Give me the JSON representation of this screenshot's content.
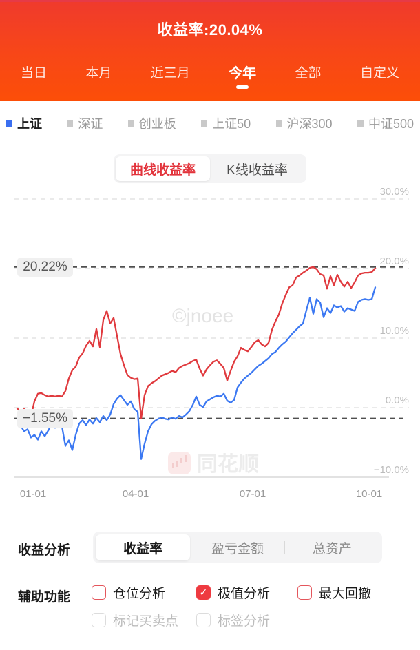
{
  "header": {
    "title": "收益率:20.04%",
    "tabs": [
      {
        "label": "当日",
        "selected": false
      },
      {
        "label": "本月",
        "selected": false
      },
      {
        "label": "近三月",
        "selected": false
      },
      {
        "label": "今年",
        "selected": true
      },
      {
        "label": "全部",
        "selected": false
      },
      {
        "label": "自定义",
        "selected": false
      }
    ]
  },
  "legend": {
    "items": [
      {
        "label": "上证",
        "active": true,
        "color": "#3a6ff0"
      },
      {
        "label": "深证",
        "active": false,
        "color": "#c9c9c9"
      },
      {
        "label": "创业板",
        "active": false,
        "color": "#c9c9c9"
      },
      {
        "label": "上证50",
        "active": false,
        "color": "#c9c9c9"
      },
      {
        "label": "沪深300",
        "active": false,
        "color": "#c9c9c9"
      },
      {
        "label": "中证500",
        "active": false,
        "color": "#c9c9c9"
      }
    ]
  },
  "view_toggle": {
    "options": [
      {
        "label": "曲线收益率",
        "selected": true
      },
      {
        "label": "K线收益率",
        "selected": false
      }
    ]
  },
  "chart_data": {
    "type": "line",
    "x_ticks": [
      "01-01",
      "04-01",
      "07-01",
      "10-01"
    ],
    "y_ticks": [
      {
        "label": "30.0%",
        "value": 30
      },
      {
        "label": "20.0%",
        "value": 20
      },
      {
        "label": "10.0%",
        "value": 10
      },
      {
        "label": "0.0%",
        "value": 0
      },
      {
        "label": "−10.0%",
        "value": -10
      }
    ],
    "ylim": [
      -13,
      32
    ],
    "grid": "dashed horizontal",
    "legend_position": "top-left (above chart)",
    "annotations": {
      "max": {
        "label": "20.22%",
        "value": 20.22
      },
      "min": {
        "label": "−1.55%",
        "value": -1.55
      }
    },
    "watermarks": [
      "©jnoee",
      "同花顺"
    ],
    "series": [
      {
        "name": "收益率",
        "color": "#e03a3e",
        "values": [
          -0.1,
          -0.6,
          -0.2,
          -1.0,
          -1.3,
          0.9,
          2.0,
          2.1,
          1.8,
          1.6,
          1.7,
          1.6,
          1.7,
          1.6,
          2.4,
          4.2,
          5.4,
          5.9,
          7.2,
          7.8,
          8.9,
          9.6,
          8.8,
          11.3,
          8.7,
          12.6,
          13.9,
          12.1,
          12.9,
          10.3,
          7.7,
          6.1,
          4.7,
          4.3,
          4.1,
          4.2,
          -1.55,
          1.8,
          3.1,
          3.5,
          3.8,
          4.2,
          4.6,
          4.8,
          5.0,
          5.3,
          5.1,
          5.7,
          6.0,
          6.2,
          6.4,
          6.7,
          6.9,
          5.6,
          4.6,
          5.5,
          6.1,
          6.6,
          6.8,
          6.3,
          5.7,
          3.9,
          5.3,
          6.6,
          7.4,
          8.6,
          8.3,
          8.1,
          8.7,
          9.4,
          9.7,
          9.1,
          8.8,
          9.3,
          11.2,
          12.4,
          13.4,
          15.0,
          16.2,
          17.3,
          17.6,
          18.7,
          19.0,
          19.4,
          19.7,
          20.1,
          20.22,
          19.9,
          19.2,
          19.0,
          17.1,
          18.9,
          17.6,
          19.1,
          18.1,
          17.4,
          18.1,
          17.2,
          18.0,
          19.0,
          19.3,
          19.4,
          19.4,
          19.5,
          20.04
        ]
      },
      {
        "name": "上证",
        "color": "#3b78f2",
        "values": [
          -1.6,
          -2.6,
          -3.4,
          -3.1,
          -4.3,
          -3.9,
          -4.6,
          -3.4,
          -4.1,
          -3.3,
          -2.4,
          -2.9,
          -2.1,
          -2.7,
          -5.5,
          -4.7,
          -6.1,
          -3.9,
          -2.3,
          -1.8,
          -2.5,
          -1.7,
          -2.3,
          -1.5,
          -2.1,
          -1.2,
          -1.8,
          -1.0,
          0.5,
          1.3,
          1.8,
          1.1,
          0.4,
          0.9,
          -0.2,
          -0.6,
          -7.4,
          -5.2,
          -3.4,
          -2.4,
          -1.9,
          -1.6,
          -1.4,
          -1.6,
          -1.7,
          -1.4,
          -1.6,
          -1.2,
          -1.4,
          -1.0,
          -0.5,
          0.4,
          1.6,
          0.4,
          0.1,
          0.9,
          1.2,
          1.5,
          1.7,
          1.6,
          2.0,
          1.0,
          0.7,
          1.1,
          2.9,
          3.6,
          4.2,
          4.6,
          5.0,
          5.5,
          6.0,
          6.3,
          6.7,
          7.1,
          7.7,
          8.0,
          8.6,
          9.1,
          9.5,
          10.1,
          10.7,
          11.2,
          11.7,
          12.1,
          14.0,
          15.8,
          13.5,
          15.6,
          15.1,
          13.0,
          14.3,
          13.6,
          14.7,
          14.4,
          14.6,
          13.8,
          14.3,
          14.1,
          13.9,
          15.2,
          15.5,
          15.6,
          15.5,
          15.6,
          17.3
        ]
      }
    ]
  },
  "analysis": {
    "label": "收益分析",
    "options": [
      {
        "label": "收益率",
        "selected": true
      },
      {
        "label": "盈亏金额",
        "selected": false
      },
      {
        "label": "总资产",
        "selected": false
      }
    ]
  },
  "aux": {
    "label": "辅助功能",
    "row1": [
      {
        "label": "仓位分析",
        "checked": false,
        "enabled": true
      },
      {
        "label": "极值分析",
        "checked": true,
        "enabled": true
      },
      {
        "label": "最大回撤",
        "checked": false,
        "enabled": true
      }
    ],
    "row2": [
      {
        "label": "标记买卖点",
        "checked": false,
        "enabled": false
      },
      {
        "label": "标签分析",
        "checked": false,
        "enabled": false
      }
    ]
  },
  "colors": {
    "header_gradient_top": "#ef3a2d",
    "header_gradient_bottom": "#fc4e08",
    "accent_red": "#e2333b",
    "line_red": "#e03a3e",
    "line_blue": "#3b78f2",
    "grid_light": "#e3e3e3",
    "grid_dark": "#4f4f4f",
    "axis_label": "#bcbcbc",
    "checkbox_red": "#ee3a40"
  }
}
